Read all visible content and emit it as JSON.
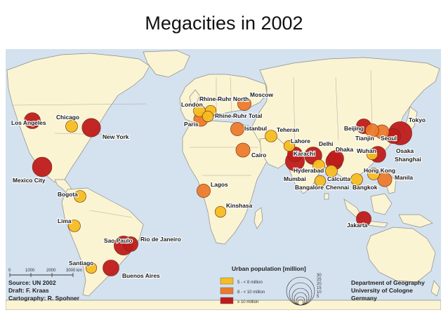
{
  "title": "Megacities in 2002",
  "colors": {
    "ocean": "#d4e1ef",
    "land": "#fbf4d2",
    "border": "#8c8c8c",
    "class_small": "#f5bd22",
    "class_medium": "#ec7a2c",
    "class_large": "#bf1b1b"
  },
  "legend": {
    "title": "Urban population [million]",
    "classes": [
      {
        "label": "5 - < 8 million",
        "key": "small"
      },
      {
        "label": "8 - < 10 million",
        "key": "medium"
      },
      {
        "label": "≥ 10 million",
        "key": "large"
      }
    ],
    "size_values": [
      "30",
      "25",
      "20",
      "15",
      "10",
      "5"
    ]
  },
  "scale_bar": {
    "ticks": [
      "0",
      "1000",
      "2000",
      "3000 km"
    ]
  },
  "credits": {
    "source": "Source: UN 2002",
    "draft": "Draft: F. Kraas",
    "cartography": "Cartography: R. Spohner"
  },
  "department": {
    "line1": "Department of Geography",
    "line2": "University of Cologne",
    "line3": "Germany"
  },
  "cities": [
    {
      "name": "Los Angeles",
      "class": "large",
      "population_million": 13
    },
    {
      "name": "Chicago",
      "class": "small",
      "population_million": 7
    },
    {
      "name": "New York",
      "class": "large",
      "population_million": 17
    },
    {
      "name": "Mexico City",
      "class": "large",
      "population_million": 19
    },
    {
      "name": "Bogota",
      "class": "small",
      "population_million": 7
    },
    {
      "name": "Lima",
      "class": "small",
      "population_million": 7
    },
    {
      "name": "Sao Paulo",
      "class": "large",
      "population_million": 18
    },
    {
      "name": "Rio de Janeiro",
      "class": "large",
      "population_million": 11
    },
    {
      "name": "Santiago",
      "class": "small",
      "population_million": 6
    },
    {
      "name": "Buenos Aires",
      "class": "large",
      "population_million": 13
    },
    {
      "name": "London",
      "class": "small",
      "population_million": 7
    },
    {
      "name": "Paris",
      "class": "medium",
      "population_million": 10
    },
    {
      "name": "Rhine-Ruhr North",
      "class": "small",
      "population_million": 6
    },
    {
      "name": "Rhine-Ruhr Total",
      "class": "small",
      "population_million": 6
    },
    {
      "name": "Moscow",
      "class": "medium",
      "population_million": 9
    },
    {
      "name": "Istanbul",
      "class": "medium",
      "population_million": 9
    },
    {
      "name": "Cairo",
      "class": "medium",
      "population_million": 10
    },
    {
      "name": "Lagos",
      "class": "medium",
      "population_million": 9
    },
    {
      "name": "Kinshasa",
      "class": "small",
      "population_million": 6
    },
    {
      "name": "Teheran",
      "class": "small",
      "population_million": 7
    },
    {
      "name": "Karachi",
      "class": "large",
      "population_million": 11
    },
    {
      "name": "Lahore",
      "class": "small",
      "population_million": 6
    },
    {
      "name": "Delhi",
      "class": "large",
      "population_million": 15
    },
    {
      "name": "Mumbai",
      "class": "large",
      "population_million": 18
    },
    {
      "name": "Hyderabad",
      "class": "small",
      "population_million": 7
    },
    {
      "name": "Bangalore",
      "class": "small",
      "population_million": 6
    },
    {
      "name": "Chennai",
      "class": "small",
      "population_million": 7
    },
    {
      "name": "Calcutta",
      "class": "large",
      "population_million": 14
    },
    {
      "name": "Dhaka",
      "class": "large",
      "population_million": 13
    },
    {
      "name": "Bangkok",
      "class": "small",
      "population_million": 7
    },
    {
      "name": "Beijing",
      "class": "large",
      "population_million": 11
    },
    {
      "name": "Tianjin",
      "class": "medium",
      "population_million": 9
    },
    {
      "name": "Seoul",
      "class": "medium",
      "population_million": 10
    },
    {
      "name": "Tokyo",
      "class": "large",
      "population_million": 27
    },
    {
      "name": "Osaka",
      "class": "large",
      "population_million": 11
    },
    {
      "name": "Shanghai",
      "class": "large",
      "population_million": 13
    },
    {
      "name": "Wuhan",
      "class": "small",
      "population_million": 6
    },
    {
      "name": "Hong Kong",
      "class": "small",
      "population_million": 7
    },
    {
      "name": "Manila",
      "class": "medium",
      "population_million": 10
    },
    {
      "name": "Jakarta",
      "class": "large",
      "population_million": 11
    }
  ]
}
